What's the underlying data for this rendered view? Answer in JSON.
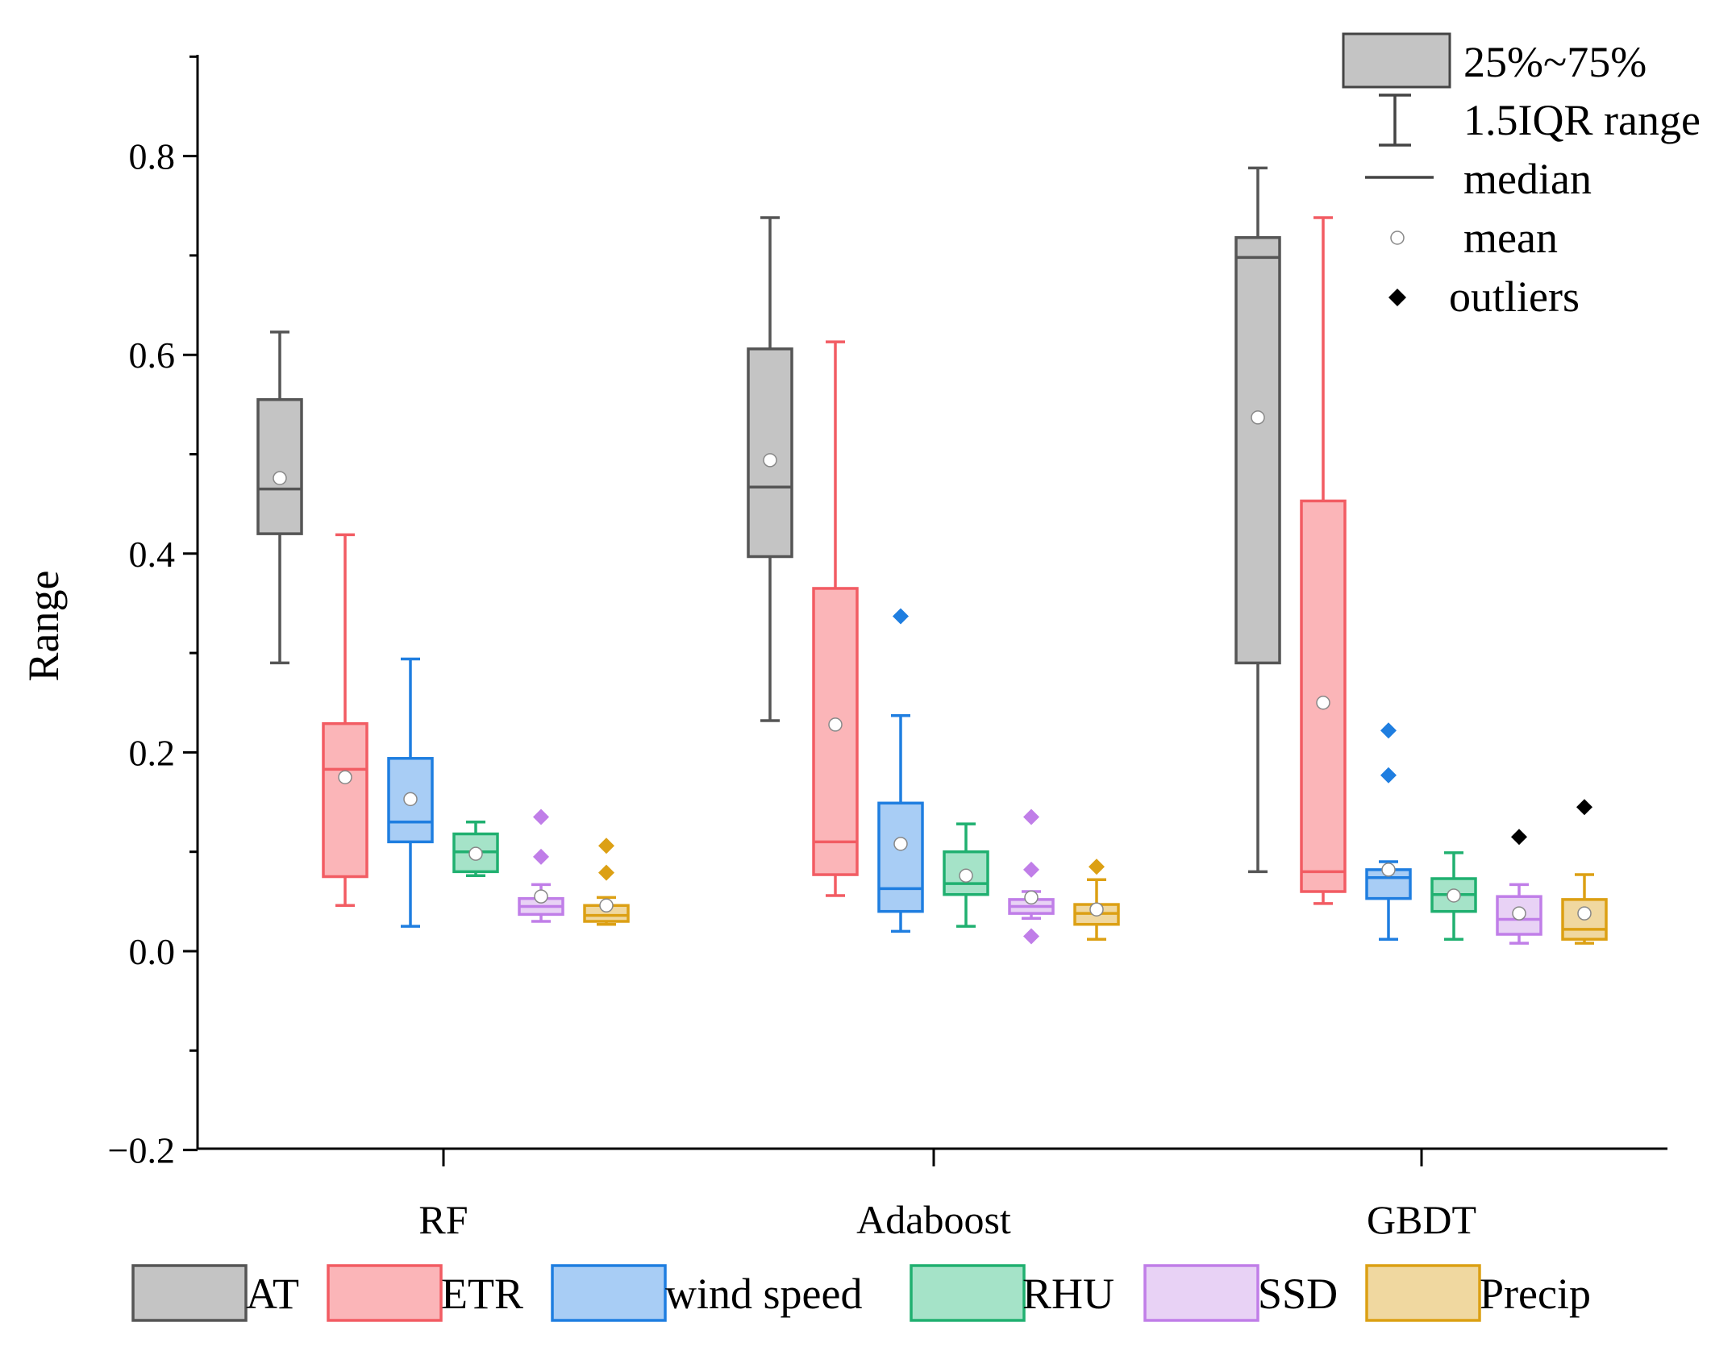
{
  "chart_data": {
    "type": "boxplot",
    "ylabel": "Range",
    "ylim": [
      -0.2,
      0.9
    ],
    "yticks": [
      {
        "value": -0.2,
        "label": "−0.2"
      },
      {
        "value": 0.0,
        "label": "0.0"
      },
      {
        "value": 0.2,
        "label": "0.2"
      },
      {
        "value": 0.4,
        "label": "0.4"
      },
      {
        "value": 0.6,
        "label": "0.6"
      },
      {
        "value": 0.8,
        "label": "0.8"
      }
    ],
    "yminor": [
      -0.1,
      0.1,
      0.3,
      0.5,
      0.7,
      0.9
    ],
    "categories": [
      "RF",
      "Adaboost",
      "GBDT"
    ],
    "series": [
      {
        "name": "AT",
        "stroke": "#555555",
        "fill": "#c4c4c4",
        "boxes": [
          {
            "wlow": 0.29,
            "q1": 0.42,
            "median": 0.465,
            "q3": 0.555,
            "whigh": 0.623,
            "mean": 0.476,
            "outliers": []
          },
          {
            "wlow": 0.232,
            "q1": 0.397,
            "median": 0.467,
            "q3": 0.606,
            "whigh": 0.738,
            "mean": 0.494,
            "outliers": []
          },
          {
            "wlow": 0.08,
            "q1": 0.29,
            "median": 0.698,
            "q3": 0.718,
            "whigh": 0.788,
            "mean": 0.537,
            "outliers": []
          }
        ]
      },
      {
        "name": "ETR",
        "stroke": "#f25c63",
        "fill": "#fbb5b8",
        "boxes": [
          {
            "wlow": 0.046,
            "q1": 0.075,
            "median": 0.183,
            "q3": 0.229,
            "whigh": 0.419,
            "mean": 0.175,
            "outliers": []
          },
          {
            "wlow": 0.056,
            "q1": 0.077,
            "median": 0.11,
            "q3": 0.365,
            "whigh": 0.613,
            "mean": 0.228,
            "outliers": []
          },
          {
            "wlow": 0.048,
            "q1": 0.06,
            "median": 0.08,
            "q3": 0.453,
            "whigh": 0.738,
            "mean": 0.25,
            "outliers": []
          }
        ]
      },
      {
        "name": "wind speed",
        "stroke": "#1f7ee0",
        "fill": "#a8cdf5",
        "boxes": [
          {
            "wlow": 0.025,
            "q1": 0.11,
            "median": 0.13,
            "q3": 0.194,
            "whigh": 0.294,
            "mean": 0.153,
            "outliers": []
          },
          {
            "wlow": 0.02,
            "q1": 0.04,
            "median": 0.063,
            "q3": 0.149,
            "whigh": 0.237,
            "mean": 0.108,
            "outliers": [
              0.337
            ]
          },
          {
            "wlow": 0.012,
            "q1": 0.053,
            "median": 0.074,
            "q3": 0.082,
            "whigh": 0.09,
            "mean": 0.082,
            "outliers": [
              0.177,
              0.222
            ]
          }
        ]
      },
      {
        "name": "RHU",
        "stroke": "#20b070",
        "fill": "#a5e3c8",
        "boxes": [
          {
            "wlow": 0.076,
            "q1": 0.08,
            "median": 0.1,
            "q3": 0.118,
            "whigh": 0.13,
            "mean": 0.098,
            "outliers": []
          },
          {
            "wlow": 0.025,
            "q1": 0.057,
            "median": 0.068,
            "q3": 0.1,
            "whigh": 0.128,
            "mean": 0.076,
            "outliers": []
          },
          {
            "wlow": 0.012,
            "q1": 0.04,
            "median": 0.057,
            "q3": 0.073,
            "whigh": 0.099,
            "mean": 0.056,
            "outliers": []
          }
        ]
      },
      {
        "name": "SSD",
        "stroke": "#c07ee8",
        "fill": "#e8d2f5",
        "boxes": [
          {
            "wlow": 0.03,
            "q1": 0.037,
            "median": 0.045,
            "q3": 0.053,
            "whigh": 0.067,
            "mean": 0.055,
            "outliers": [
              0.095,
              0.135
            ]
          },
          {
            "wlow": 0.033,
            "q1": 0.038,
            "median": 0.045,
            "q3": 0.052,
            "whigh": 0.06,
            "mean": 0.054,
            "outliers": [
              0.015,
              0.082,
              0.135
            ]
          },
          {
            "wlow": 0.008,
            "q1": 0.017,
            "median": 0.032,
            "q3": 0.055,
            "whigh": 0.067,
            "mean": 0.038,
            "outliers": [
              0.115
            ]
          }
        ]
      },
      {
        "name": "Precip",
        "stroke": "#dca014",
        "fill": "#f0d8a0",
        "boxes": [
          {
            "wlow": 0.027,
            "q1": 0.03,
            "median": 0.036,
            "q3": 0.046,
            "whigh": 0.054,
            "mean": 0.046,
            "outliers": [
              0.079,
              0.106
            ]
          },
          {
            "wlow": 0.012,
            "q1": 0.027,
            "median": 0.038,
            "q3": 0.047,
            "whigh": 0.072,
            "mean": 0.042,
            "outliers": [
              0.085
            ]
          },
          {
            "wlow": 0.008,
            "q1": 0.012,
            "median": 0.022,
            "q3": 0.052,
            "whigh": 0.077,
            "mean": 0.038,
            "outliers": [
              0.145
            ]
          }
        ],
        "outlier_color_last": "#000000"
      }
    ],
    "key_legend": {
      "box_label": "25%~75%",
      "whisker_label": "1.5IQR range",
      "median_label": "median",
      "mean_label": "mean",
      "outlier_label": "outliers"
    },
    "legend_position": "bottom"
  }
}
